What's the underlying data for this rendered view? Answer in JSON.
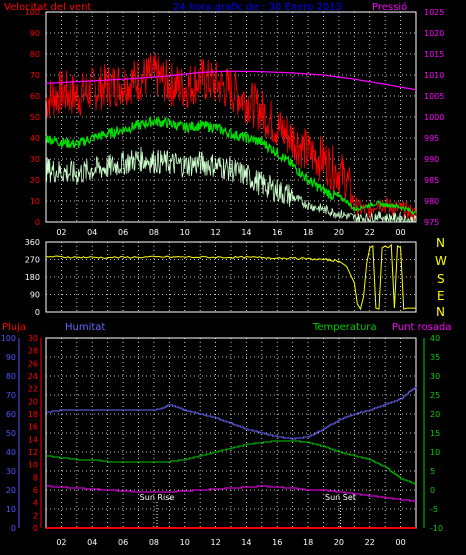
{
  "header": {
    "left_label": "Velocitat del vent",
    "title": "24 hora grafic de : 30 Enero 2013",
    "right_label": "Pressió"
  },
  "colors": {
    "background": "#000000",
    "grid": "#ffffff",
    "wind_gust": "#ff0000",
    "wind_average": "#00dd00",
    "wind_speed": "#ccffcc",
    "pressure": "#ff00ff",
    "wind_direction": "#ffff00",
    "humidity": "#6666ff",
    "temperature": "#00cc00",
    "dew_point": "#ff00ff",
    "rain": "#ff0000",
    "rain_axis": "#ff0000",
    "humidity_axis": "#5555ff",
    "temperature_axis": "#00cc00",
    "dew_axis": "#ff00ff",
    "header_title": "#0000ff"
  },
  "x_tick_labels": [
    "02",
    "04",
    "06",
    "08",
    "10",
    "12",
    "14",
    "16",
    "18",
    "20",
    "22",
    "00"
  ],
  "wind_direction_panel": {
    "compass_labels": [
      "N",
      "W",
      "S",
      "E",
      "N"
    ]
  },
  "bottom_panel": {
    "rain_label": "Pluja",
    "humidity_label": "Humitat",
    "temperature_label": "Temperatura",
    "dew_label": "Punt rosada",
    "sun_rise_label": "Sun Rise",
    "sun_set_label": "Sun Set",
    "sun_rise_hour": 7.2,
    "sun_set_hour": 19.1
  },
  "chart_data": [
    {
      "type": "line",
      "x_range": [
        0,
        24
      ],
      "ylim_left": [
        0,
        100
      ],
      "yticks_left": [
        0,
        10,
        20,
        30,
        40,
        50,
        60,
        70,
        80,
        90,
        100
      ],
      "ylim_right": [
        975,
        1025
      ],
      "yticks_right": [
        975,
        980,
        985,
        990,
        995,
        1000,
        1005,
        1010,
        1015,
        1020,
        1025
      ],
      "grid": true,
      "series": [
        {
          "name": "Velocitat del vent",
          "axis": "left",
          "color_key": "wind_gust",
          "x": [
            0,
            1,
            2,
            3,
            4,
            5,
            6,
            7,
            8,
            9,
            10,
            11,
            12,
            13,
            14,
            15,
            16,
            17,
            18,
            18.5,
            19,
            19.5,
            20,
            20.5,
            21,
            21.5,
            22,
            22.5,
            23,
            23.5,
            24
          ],
          "y": [
            58,
            62,
            60,
            63,
            65,
            66,
            68,
            70,
            66,
            64,
            68,
            66,
            63,
            58,
            53,
            45,
            40,
            33,
            30,
            26,
            24,
            20,
            8,
            6,
            5,
            10,
            8,
            7,
            6,
            5,
            3
          ]
        },
        {
          "name": "",
          "axis": "left",
          "color_key": "wind_average",
          "x": [
            0,
            1,
            2,
            3,
            4,
            5,
            6,
            7,
            8,
            9,
            10,
            11,
            12,
            13,
            14,
            15,
            16,
            17,
            18,
            18.5,
            19,
            19.5,
            20,
            20.5,
            21,
            21.5,
            22,
            22.5,
            23,
            23.5,
            24
          ],
          "y": [
            40,
            38,
            37,
            40,
            42,
            44,
            46,
            48,
            47,
            45,
            46,
            45,
            42,
            40,
            38,
            33,
            27,
            20,
            15,
            13,
            12,
            10,
            6,
            7,
            8,
            9,
            8,
            8,
            7,
            6,
            4
          ]
        },
        {
          "name": "",
          "axis": "left",
          "color_key": "wind_speed",
          "x": [
            0,
            1,
            2,
            3,
            4,
            5,
            6,
            7,
            8,
            9,
            10,
            11,
            12,
            13,
            14,
            15,
            16,
            17,
            18,
            18.5,
            19,
            19.5,
            20,
            20.5,
            21,
            21.5,
            22,
            22.5,
            23,
            23.5,
            24
          ],
          "y": [
            25,
            24,
            23,
            25,
            26,
            28,
            30,
            29,
            28,
            27,
            28,
            27,
            25,
            22,
            18,
            15,
            12,
            8,
            6,
            5,
            4,
            3,
            2,
            2,
            2,
            3,
            2,
            2,
            2,
            1,
            1
          ]
        },
        {
          "name": "Pressió",
          "axis": "right",
          "color_key": "pressure",
          "x": [
            0,
            2,
            4,
            6,
            8,
            9,
            10,
            11,
            12,
            14,
            16,
            18,
            20,
            22,
            23,
            24
          ],
          "y": [
            1008.0,
            1008.4,
            1008.8,
            1009.2,
            1009.8,
            1010.2,
            1010.6,
            1010.8,
            1010.9,
            1010.8,
            1010.5,
            1010.0,
            1009.0,
            1007.8,
            1007.1,
            1006.5
          ]
        }
      ]
    },
    {
      "type": "line",
      "x_range": [
        0,
        24
      ],
      "ylim": [
        0,
        360
      ],
      "yticks": [
        0,
        90,
        180,
        270,
        360
      ],
      "grid": true,
      "series": [
        {
          "name": "",
          "color_key": "wind_direction",
          "x": [
            0,
            2,
            4,
            6,
            8,
            10,
            12,
            14,
            16,
            18,
            19,
            19.5,
            20,
            20.2,
            20.4,
            20.6,
            20.8,
            21,
            21.2,
            21.4,
            21.6,
            21.8,
            22,
            22.2,
            22.4,
            22.6,
            22.8,
            23,
            23.2,
            23.4,
            23.6,
            23.8,
            24
          ],
          "y": [
            285,
            282,
            280,
            282,
            283,
            282,
            281,
            280,
            277,
            270,
            262,
            235,
            150,
            40,
            15,
            80,
            250,
            330,
            340,
            20,
            15,
            330,
            340,
            330,
            345,
            20,
            340,
            330,
            15,
            20,
            20,
            20,
            20
          ]
        }
      ]
    },
    {
      "type": "line",
      "x_range": [
        0,
        24
      ],
      "ylim_humidity": [
        0,
        100
      ],
      "yticks_humidity": [
        0,
        10,
        20,
        30,
        40,
        50,
        60,
        70,
        80,
        90,
        100
      ],
      "ylim_rain": [
        0,
        30
      ],
      "yticks_rain": [
        0,
        2,
        4,
        6,
        8,
        10,
        12,
        14,
        16,
        18,
        20,
        22,
        24,
        26,
        28,
        30
      ],
      "ylim_temperature": [
        -10,
        40
      ],
      "yticks_temperature": [
        -10,
        -5,
        0,
        5,
        10,
        15,
        20,
        25,
        30,
        35,
        40
      ],
      "grid": true,
      "series": [
        {
          "name": "Pluja",
          "axis": "rain",
          "color_key": "rain",
          "x": [
            0,
            24
          ],
          "y": [
            0,
            0
          ]
        },
        {
          "name": "Humitat",
          "axis": "humidity",
          "color_key": "humidity",
          "x": [
            0,
            1,
            2,
            4,
            6,
            7,
            7.5,
            8,
            9,
            10,
            11,
            12,
            13,
            14,
            15,
            16,
            17,
            18,
            19,
            20,
            21,
            22,
            23,
            23.6,
            24
          ],
          "y": [
            61,
            62,
            62,
            62,
            62,
            62,
            63,
            65,
            62,
            60,
            58,
            55,
            52,
            50,
            48,
            47,
            48,
            52,
            57,
            60,
            62,
            65,
            68,
            72,
            74
          ]
        },
        {
          "name": "Temperatura",
          "axis": "temperature",
          "color_key": "temperature",
          "x": [
            0,
            1,
            2,
            3,
            4,
            6,
            8,
            9,
            10,
            11,
            12,
            13,
            14,
            15,
            16,
            17,
            18,
            19,
            20,
            21,
            22,
            23,
            24
          ],
          "y": [
            9,
            8.5,
            8,
            8,
            7.5,
            7.5,
            7.5,
            8,
            9,
            10,
            11,
            12,
            12.5,
            13,
            13,
            12.5,
            11.5,
            10,
            9,
            8,
            6,
            3,
            1.5
          ]
        },
        {
          "name": "Punt rosada",
          "axis": "temperature",
          "color_key": "dew_point",
          "x": [
            0,
            2,
            4,
            6,
            8,
            10,
            12,
            14,
            16,
            17,
            18,
            19,
            20,
            21,
            22,
            23,
            24
          ],
          "y": [
            1,
            0.5,
            0,
            -0.5,
            -0.5,
            0,
            0.5,
            1,
            0.5,
            0,
            0,
            -0.5,
            -1,
            -1.5,
            -2,
            -2.5,
            -3
          ]
        }
      ]
    }
  ]
}
